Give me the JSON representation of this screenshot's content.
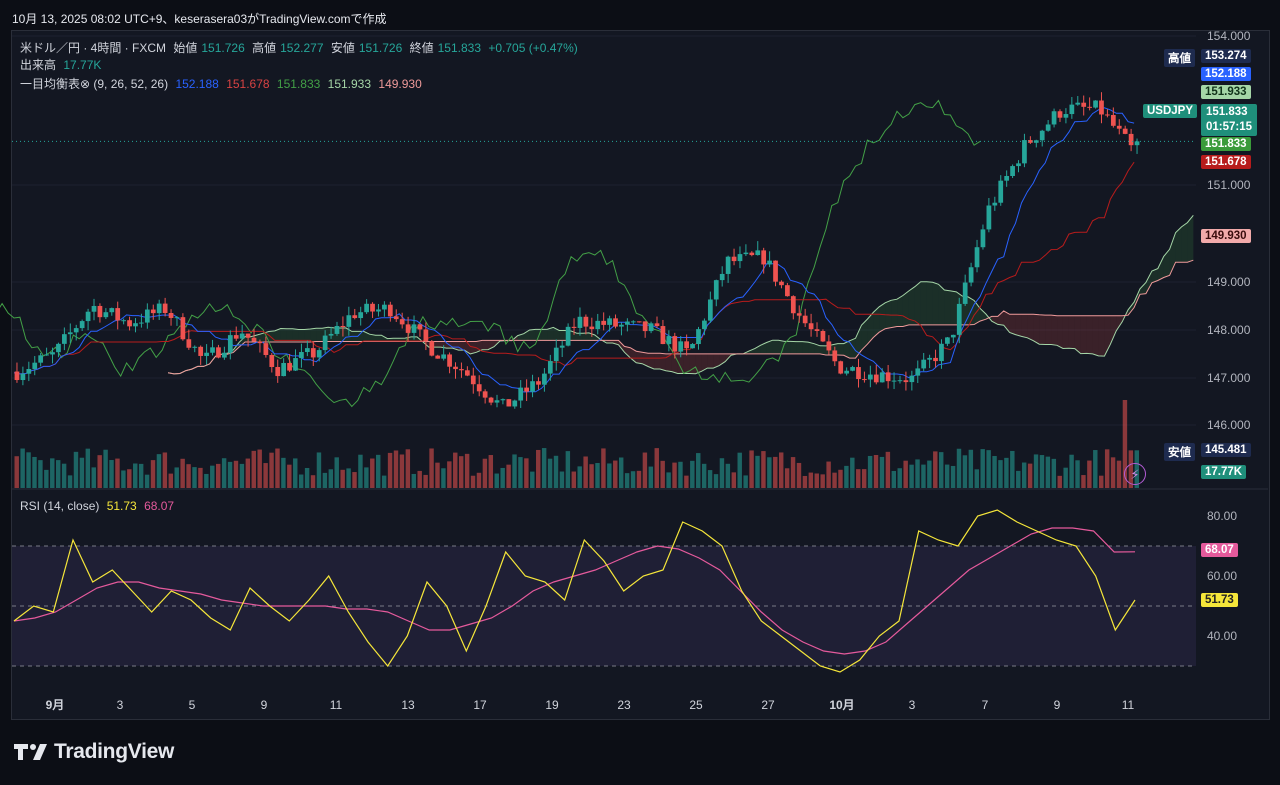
{
  "header_text": "10月 13, 2025 08:02 UTC+9、keserasera03がTradingView.comで作成",
  "legend": {
    "symbol": "米ドル／円 · 4時間 · FXCM",
    "open_label": "始値",
    "open": "151.726",
    "high_label": "高値",
    "high": "152.277",
    "low_label": "安値",
    "low": "151.726",
    "close_label": "終値",
    "close": "151.833",
    "change": "+0.705 (+0.47%)",
    "volume_label": "出来高",
    "volume": "17.77K",
    "ichimoku_label": "一目均衡表⊗ (9, 26, 52, 26)",
    "ichimoku_values": [
      "152.188",
      "151.678",
      "151.833",
      "151.933",
      "149.930"
    ],
    "rsi_label": "RSI (14, close)",
    "rsi_value": "51.73",
    "rsi_ma": "68.07"
  },
  "colors": {
    "up": "#26a69a",
    "down": "#ef5350",
    "tenkan": "#2962ff",
    "kijun": "#b71c1c",
    "chikou": "#43a047",
    "span_a": "#a5d6a7",
    "span_b": "#ef9a9a",
    "rsi": "#f5e63a",
    "rsi_ma": "#e55a9c",
    "band": "#7e57c2"
  },
  "price_axis": {
    "labels": [
      "154.000",
      "151.000",
      "149.000",
      "148.000",
      "147.000",
      "146.000"
    ]
  },
  "rsi_axis": {
    "labels": [
      "80.00",
      "60.00",
      "40.00"
    ]
  },
  "x_axis": {
    "labels": [
      "9月",
      "3",
      "5",
      "9",
      "11",
      "13",
      "17",
      "19",
      "23",
      "25",
      "27",
      "10月",
      "3",
      "7",
      "9",
      "11"
    ]
  },
  "badges": {
    "high_label": "高値",
    "high_value": "153.274",
    "tenkan_value": "152.188",
    "span_a_value": "151.933",
    "symbol": "USDJPY",
    "last_price": "151.833",
    "countdown": "01:57:15",
    "chikou_value": "151.833",
    "kijun_value": "151.678",
    "span_b_value": "149.930",
    "low_label": "安値",
    "low_value": "145.481",
    "volume_value": "17.77K",
    "rsi_ma_value": "68.07",
    "rsi_value": "51.73"
  },
  "brand": "TradingView",
  "chart_data": {
    "type": "candlestick",
    "title": "米ドル／円 · 4時間 · FXCM",
    "x_tick_labels": [
      "9月",
      "3",
      "5",
      "9",
      "11",
      "13",
      "17",
      "19",
      "23",
      "25",
      "27",
      "10月",
      "3",
      "7",
      "9",
      "11"
    ],
    "price_range": [
      145.2,
      154.2
    ],
    "price_path": [
      [
        147.0,
        147.2
      ],
      [
        147.4,
        147.5
      ],
      [
        148.3,
        148.6
      ],
      [
        148.0,
        148.2
      ],
      [
        148.5,
        148.3
      ],
      [
        147.5,
        147.1
      ],
      [
        147.8,
        148.1
      ],
      [
        147.3,
        147.0
      ],
      [
        147.6,
        147.4
      ],
      [
        148.2,
        148.4
      ],
      [
        148.5,
        148.3
      ],
      [
        147.8,
        147.5
      ],
      [
        147.3,
        146.9
      ],
      [
        146.4,
        146.3
      ],
      [
        146.5,
        147.3
      ],
      [
        148.0,
        148.3
      ],
      [
        148.1,
        148.0
      ],
      [
        148.3,
        147.6
      ],
      [
        147.1,
        147.8
      ],
      [
        149.2,
        149.5
      ],
      [
        149.6,
        149.3
      ],
      [
        148.3,
        148.1
      ],
      [
        147.4,
        147.0
      ],
      [
        147.1,
        147.0
      ],
      [
        146.7,
        147.2
      ],
      [
        147.5,
        148.0
      ],
      [
        150.1,
        150.7
      ],
      [
        151.5,
        152.0
      ],
      [
        152.4,
        152.6
      ],
      [
        152.7,
        152.3
      ],
      [
        151.2,
        151.833
      ]
    ],
    "ichimoku_values": {
      "tenkan": 152.188,
      "kijun": 151.678,
      "chikou": 151.833,
      "span_a": 151.933,
      "span_b": 149.93
    },
    "volume_last": "17.77K",
    "rsi": {
      "period": 14,
      "range": [
        20,
        90
      ],
      "bands": [
        30,
        70
      ],
      "values": [
        45,
        50,
        48,
        72,
        58,
        62,
        55,
        48,
        55,
        52,
        46,
        42,
        56,
        50,
        45,
        52,
        60,
        48,
        38,
        30,
        40,
        58,
        50,
        35,
        50,
        68,
        60,
        58,
        52,
        72,
        65,
        55,
        60,
        62,
        78,
        75,
        70,
        55,
        45,
        40,
        35,
        30,
        28,
        32,
        40,
        45,
        75,
        72,
        70,
        80,
        82,
        78,
        75,
        72,
        70,
        60,
        42,
        52
      ],
      "ma_values": [
        45,
        46,
        48,
        52,
        56,
        58,
        58,
        56,
        55,
        54,
        52,
        51,
        50,
        50,
        50,
        50,
        49,
        49,
        48,
        45,
        42,
        42,
        44,
        46,
        50,
        55,
        58,
        60,
        62,
        65,
        68,
        70,
        69,
        66,
        62,
        55,
        48,
        42,
        38,
        35,
        34,
        35,
        38,
        44,
        50,
        56,
        62,
        66,
        70,
        74,
        76,
        76,
        75,
        68,
        68.07
      ],
      "last": 51.73,
      "ma_last": 68.07
    }
  }
}
